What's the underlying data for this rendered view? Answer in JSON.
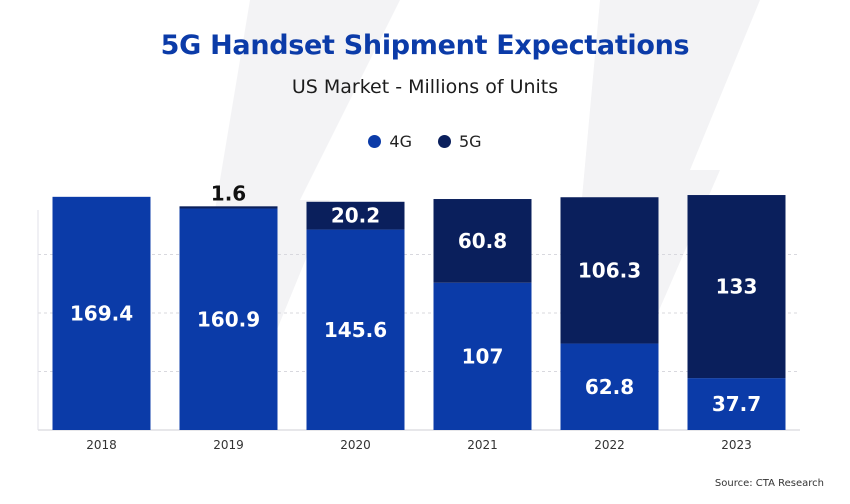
{
  "chart_data": {
    "type": "bar",
    "stacked": true,
    "title": "5G Handset Shipment Expectations",
    "subtitle": "US Market - Millions of Units",
    "categories": [
      "2018",
      "2019",
      "2020",
      "2021",
      "2022",
      "2023"
    ],
    "series": [
      {
        "name": "4G",
        "color": "#0b3ba8",
        "values": [
          169.4,
          160.9,
          145.6,
          107,
          62.8,
          37.7
        ]
      },
      {
        "name": "5G",
        "color": "#0a1f5c",
        "values": [
          0,
          1.6,
          20.2,
          60.8,
          106.3,
          133
        ]
      }
    ],
    "ylim": [
      0,
      170
    ],
    "grid": true,
    "legend_position": "top-center",
    "source": "Source: CTA Research"
  }
}
